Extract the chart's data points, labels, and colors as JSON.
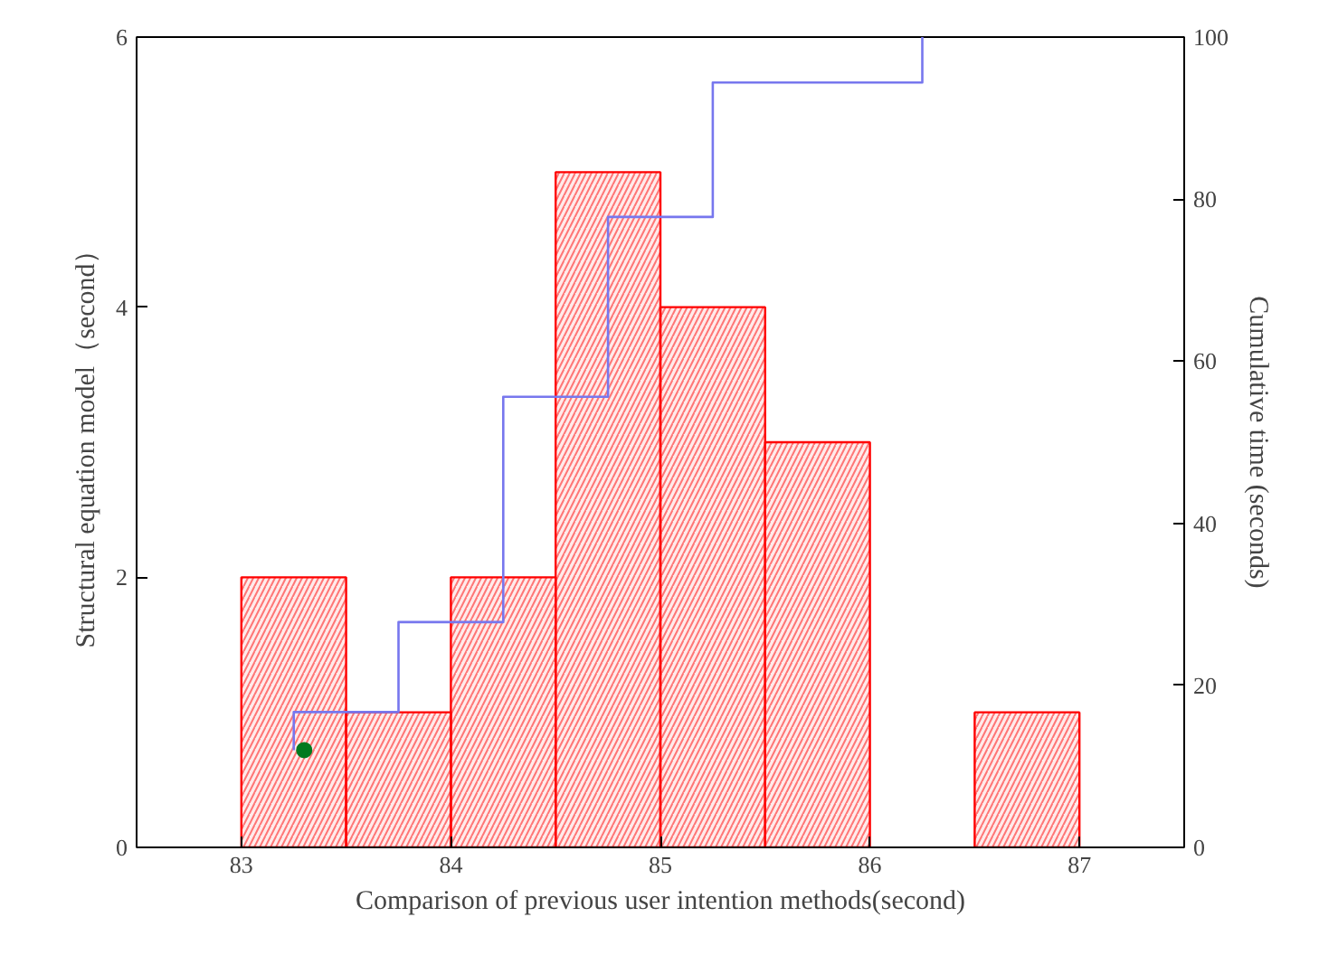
{
  "chart_data": {
    "type": "histogram",
    "xlabel": "Comparison of previous user intention methods(second)",
    "ylabel": "Structural equation model（second）",
    "y2label": "Cumulative time (seconds)",
    "xlim": [
      82.5,
      87.5
    ],
    "xticks": [
      83,
      84,
      85,
      86,
      87
    ],
    "ylim": [
      0,
      6
    ],
    "yticks": [
      0,
      2,
      4,
      6
    ],
    "y2lim": [
      0,
      100
    ],
    "y2ticks": [
      0,
      20,
      40,
      60,
      80,
      100
    ],
    "grid": false,
    "series": [
      {
        "color": "#ff0000",
        "bins": [
          83,
          83.5,
          84,
          84.5,
          85,
          85.5,
          86,
          86.5,
          87
        ],
        "values": [
          2,
          1,
          2,
          5,
          4,
          3,
          0,
          1
        ]
      },
      {
        "type": "line",
        "axis": "y2",
        "color": "#7777ee",
        "x": [
          83.25,
          83.25,
          83.75,
          83.75,
          84.25,
          84.25,
          84.75,
          84.75,
          85.25,
          85.25,
          86.25,
          86.25
        ],
        "values": [
          12,
          16.7,
          16.7,
          27.8,
          27.8,
          55.6,
          55.6,
          77.8,
          77.8,
          94.4,
          94.4,
          100
        ]
      },
      {
        "type": "scatter",
        "color": "#007a20",
        "marker": "circle",
        "x": [
          83.3
        ],
        "values": [
          0.72
        ]
      }
    ]
  }
}
